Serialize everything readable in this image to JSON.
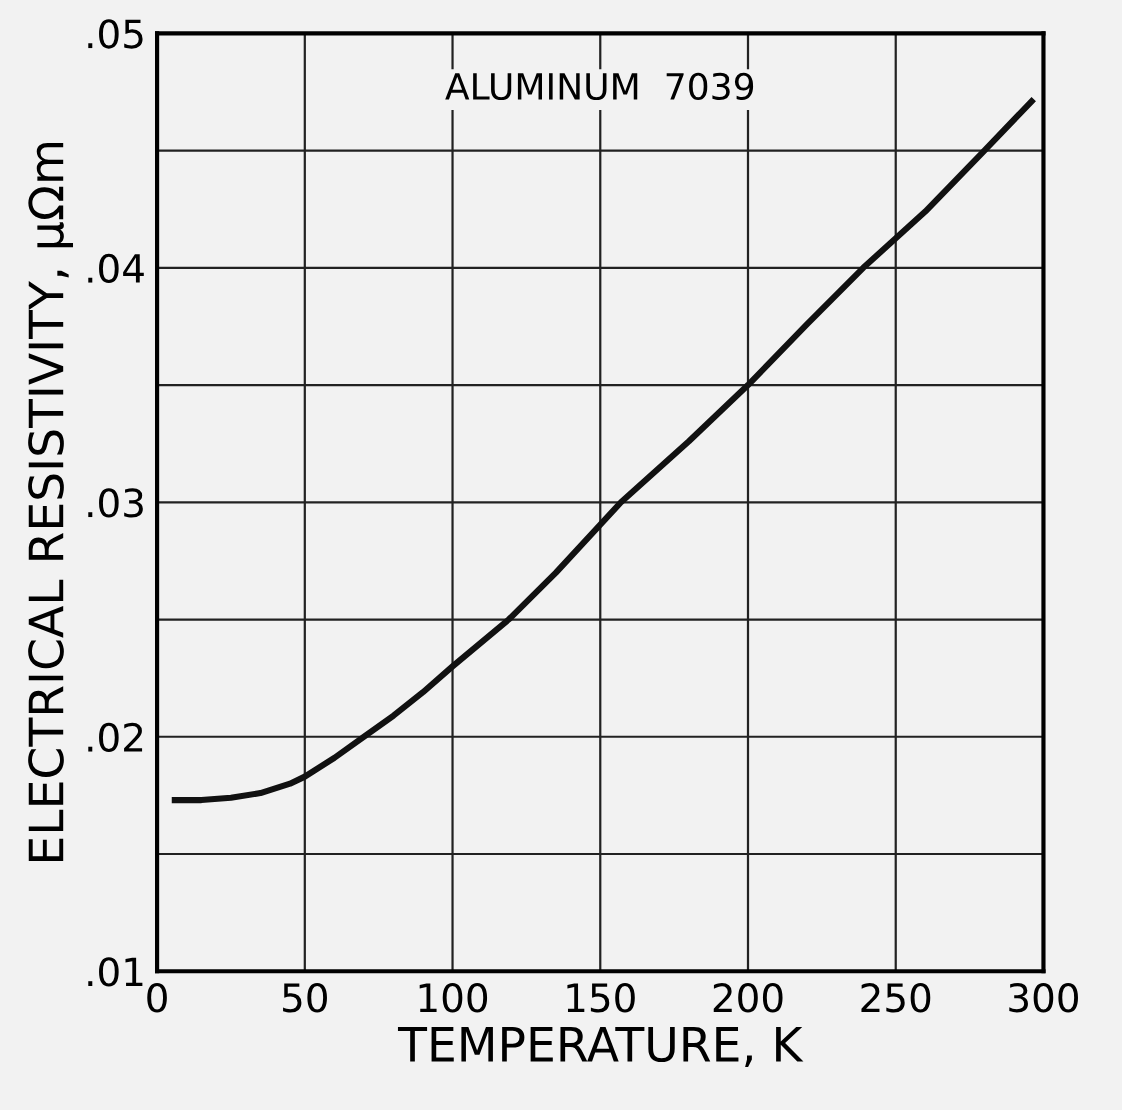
{
  "chart_data": {
    "type": "line",
    "xlabel": "TEMPERATURE, K",
    "ylabel": "ELECTRICAL RESISTIVITY, μΩm",
    "annotations": [
      "ALUMINUM  7039"
    ],
    "series": [
      {
        "color": "#111111",
        "x": [
          6,
          15,
          25,
          35,
          45,
          50,
          60,
          70,
          80,
          90,
          100,
          119,
          135,
          157,
          180,
          200,
          220,
          239,
          260,
          280,
          296
        ],
        "values": [
          0.0173,
          0.0173,
          0.0174,
          0.0176,
          0.018,
          0.0183,
          0.0191,
          0.02,
          0.0209,
          0.0219,
          0.023,
          0.025,
          0.027,
          0.03,
          0.0326,
          0.035,
          0.0376,
          0.04,
          0.0424,
          0.045,
          0.0471
        ]
      }
    ],
    "xlim": [
      0,
      300
    ],
    "xticks": [
      0,
      50,
      100,
      150,
      200,
      250,
      300
    ],
    "ylim": [
      0.01,
      0.05
    ],
    "yticks": [
      {
        "value": 0.01,
        "label": ".01"
      },
      {
        "value": 0.015,
        "label": null
      },
      {
        "value": 0.02,
        "label": ".02"
      },
      {
        "value": 0.025,
        "label": null
      },
      {
        "value": 0.03,
        "label": ".03"
      },
      {
        "value": 0.035,
        "label": null
      },
      {
        "value": 0.04,
        "label": ".04"
      },
      {
        "value": 0.045,
        "label": null
      },
      {
        "value": 0.05,
        "label": ".05"
      }
    ],
    "grid": true,
    "marker": "none",
    "line_style": "solid",
    "legend": false
  }
}
